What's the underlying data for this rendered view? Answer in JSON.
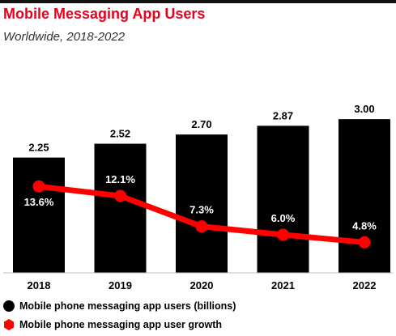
{
  "header": {
    "title": "Mobile Messaging App Users",
    "subtitle": "Worldwide, 2018-2022"
  },
  "colors": {
    "title": "#e8001c",
    "bars": "#000000",
    "line": "#ff0000"
  },
  "legend": {
    "position": "bottom-left",
    "items": [
      {
        "label": "Mobile phone messaging app users (billions)",
        "shape": "circle",
        "color": "#000000"
      },
      {
        "label": "Mobile phone messaging app user growth",
        "shape": "hexagon",
        "color": "#ff0000"
      }
    ]
  },
  "chart_data": {
    "type": "bar",
    "title": "Mobile Messaging App Users",
    "subtitle": "Worldwide, 2018-2022",
    "categories": [
      "2018",
      "2019",
      "2020",
      "2021",
      "2022"
    ],
    "series": [
      {
        "name": "Mobile phone messaging app users (billions)",
        "type": "bar",
        "values": [
          2.25,
          2.52,
          2.7,
          2.87,
          3.0
        ],
        "labels": [
          "2.25",
          "2.52",
          "2.70",
          "2.87",
          "3.00"
        ]
      },
      {
        "name": "Mobile phone messaging app user growth",
        "type": "line",
        "values": [
          13.6,
          12.1,
          7.3,
          6.0,
          4.8
        ],
        "labels": [
          "13.6%",
          "12.1%",
          "7.3%",
          "6.0%",
          "4.8%"
        ]
      }
    ],
    "ylim_bars": [
      0,
      3.35
    ],
    "ylim_line": [
      0,
      27
    ],
    "grid": false,
    "legend": "bottom-left"
  }
}
